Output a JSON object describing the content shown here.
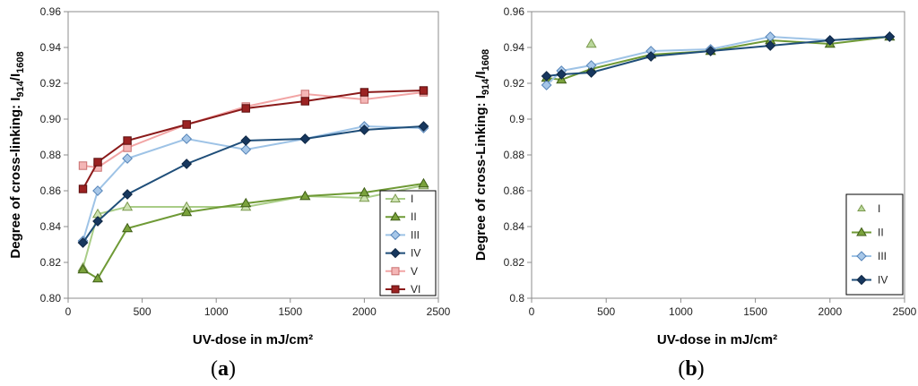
{
  "chart_data": [
    {
      "type": "line",
      "panel_label": "a",
      "xlabel": "UV-dose in mJ/cm²",
      "ylabel": "Degree of cross-linking: I914/I1608",
      "ylabel_parts": {
        "main": "Degree of cross-linking: I",
        "sub1": "914",
        "sep": "/I",
        "sub2": "1608"
      },
      "xlim": [
        0,
        2500
      ],
      "ylim": [
        0.8,
        0.96
      ],
      "xticks": [
        "0",
        "500",
        "1000",
        "1500",
        "2000",
        "2500"
      ],
      "yticks": [
        "0.80",
        "0.82",
        "0.84",
        "0.86",
        "0.88",
        "0.90",
        "0.92",
        "0.94",
        "0.96"
      ],
      "legend_position": "bottom-right",
      "series": [
        {
          "name": "I",
          "marker": "triangle",
          "line_color": "#a9cd87",
          "marker_fill": "#cde2b2",
          "marker_stroke": "#7c9a4f",
          "show_line": true,
          "x": [
            100,
            200,
            400,
            800,
            1200,
            1600,
            2000,
            2400
          ],
          "y": [
            0.817,
            0.847,
            0.851,
            0.851,
            0.851,
            0.857,
            0.856,
            0.863
          ]
        },
        {
          "name": "II",
          "marker": "triangle",
          "line_color": "#6f9a36",
          "marker_fill": "#7aa23c",
          "marker_stroke": "#3f5e17",
          "show_line": true,
          "x": [
            100,
            200,
            400,
            800,
            1200,
            1600,
            2000,
            2400
          ],
          "y": [
            0.816,
            0.811,
            0.839,
            0.848,
            0.853,
            0.857,
            0.859,
            0.864
          ]
        },
        {
          "name": "III",
          "marker": "diamond",
          "line_color": "#9ec3e6",
          "marker_fill": "#a7c7e8",
          "marker_stroke": "#5684b8",
          "show_line": true,
          "x": [
            100,
            200,
            400,
            800,
            1200,
            1600,
            2000,
            2400
          ],
          "y": [
            0.832,
            0.86,
            0.878,
            0.889,
            0.883,
            0.889,
            0.896,
            0.895
          ]
        },
        {
          "name": "IV",
          "marker": "diamond",
          "line_color": "#1f4e79",
          "marker_fill": "#17375e",
          "marker_stroke": "#0f2744",
          "show_line": true,
          "x": [
            100,
            200,
            400,
            800,
            1200,
            1600,
            2000,
            2400
          ],
          "y": [
            0.831,
            0.843,
            0.858,
            0.875,
            0.888,
            0.889,
            0.894,
            0.896
          ]
        },
        {
          "name": "V",
          "marker": "square",
          "line_color": "#f2a5a5",
          "marker_fill": "#f4b6b6",
          "marker_stroke": "#c96f6f",
          "show_line": true,
          "x": [
            100,
            200,
            400,
            800,
            1200,
            1600,
            2000,
            2400
          ],
          "y": [
            0.874,
            0.873,
            0.884,
            0.897,
            0.907,
            0.914,
            0.911,
            0.915
          ]
        },
        {
          "name": "VI",
          "marker": "square",
          "line_color": "#8b1a1a",
          "marker_fill": "#9b2222",
          "marker_stroke": "#5a0d0d",
          "show_line": true,
          "x": [
            100,
            200,
            400,
            800,
            1200,
            1600,
            2000,
            2400
          ],
          "y": [
            0.861,
            0.876,
            0.888,
            0.897,
            0.906,
            0.91,
            0.915,
            0.916
          ]
        }
      ]
    },
    {
      "type": "line",
      "panel_label": "b",
      "xlabel": "UV-dose in mJ/cm²",
      "ylabel": "Degree of cross-Linking: I914/I1608",
      "ylabel_parts": {
        "main": "Degree of cross-Linking: I",
        "sub1": "914",
        "sep": "/I",
        "sub2": "1608"
      },
      "xlim": [
        0,
        2500
      ],
      "ylim": [
        0.8,
        0.96
      ],
      "xticks": [
        "0",
        "500",
        "1000",
        "1500",
        "2000",
        "2500"
      ],
      "yticks": [
        "0.8",
        "0.82",
        "0.84",
        "0.86",
        "0.88",
        "0.9",
        "0.92",
        "0.94",
        "0.96"
      ],
      "legend_position": "bottom-right",
      "series": [
        {
          "name": "I",
          "marker": "triangle",
          "line_color": "#a9cd87",
          "marker_fill": "#b9d79a",
          "marker_stroke": "#7c9a4f",
          "show_line": false,
          "x": [
            400
          ],
          "y": [
            0.942
          ]
        },
        {
          "name": "II",
          "marker": "triangle",
          "line_color": "#6f9a36",
          "marker_fill": "#7aa23c",
          "marker_stroke": "#3f5e17",
          "show_line": true,
          "x": [
            100,
            200,
            400,
            800,
            1200,
            1600,
            2000,
            2400
          ],
          "y": [
            0.923,
            0.922,
            0.928,
            0.936,
            0.938,
            0.944,
            0.942,
            0.946
          ]
        },
        {
          "name": "III",
          "marker": "diamond",
          "line_color": "#9ec3e6",
          "marker_fill": "#a7c7e8",
          "marker_stroke": "#5684b8",
          "show_line": true,
          "x": [
            100,
            200,
            400,
            800,
            1200,
            1600,
            2000,
            2400
          ],
          "y": [
            0.919,
            0.927,
            0.93,
            0.938,
            0.939,
            0.946,
            0.944,
            0.946
          ]
        },
        {
          "name": "IV",
          "marker": "diamond",
          "line_color": "#1f4e79",
          "marker_fill": "#17375e",
          "marker_stroke": "#0f2744",
          "show_line": true,
          "x": [
            100,
            200,
            400,
            800,
            1200,
            1600,
            2000,
            2400
          ],
          "y": [
            0.924,
            0.925,
            0.926,
            0.935,
            0.938,
            0.941,
            0.944,
            0.946
          ]
        }
      ]
    }
  ]
}
